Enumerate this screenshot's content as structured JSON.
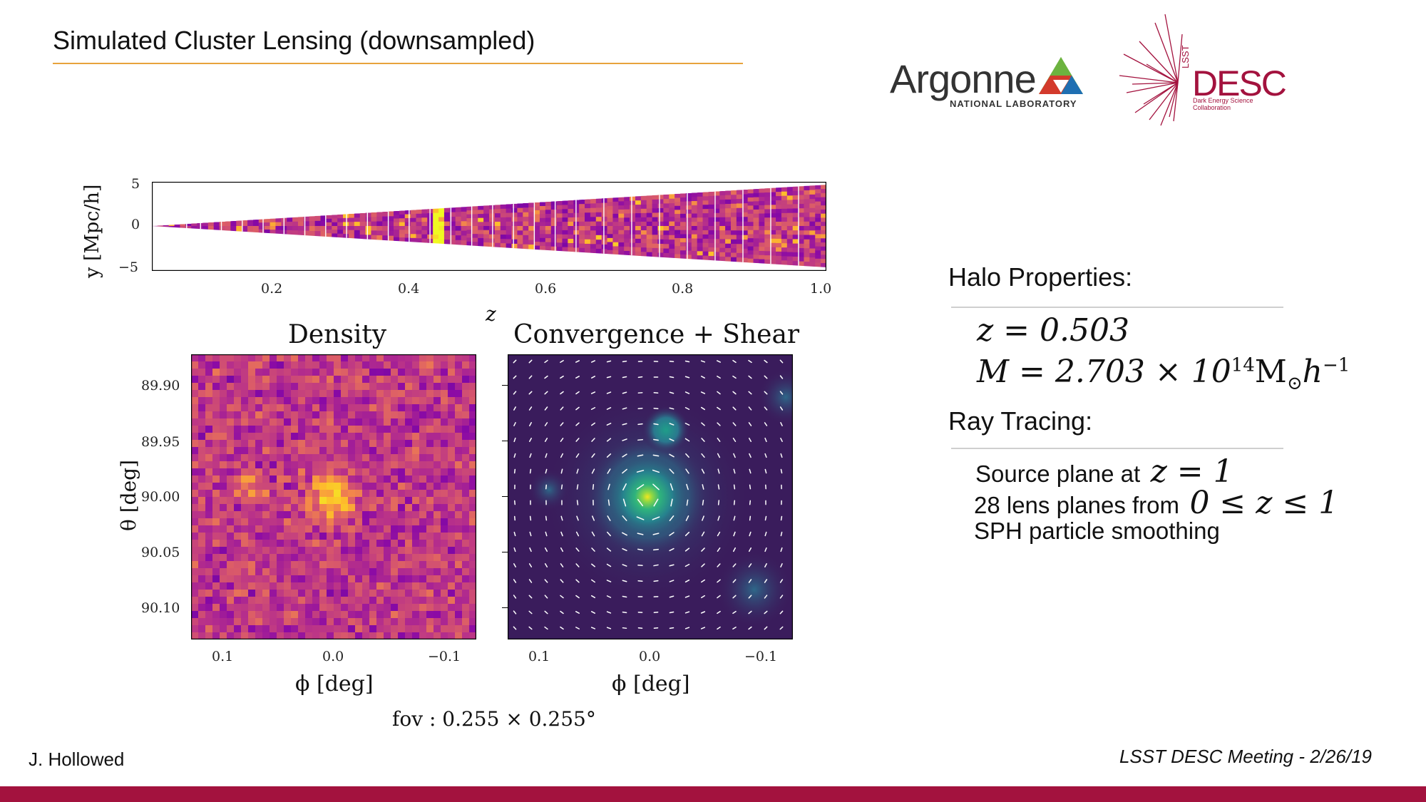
{
  "slide": {
    "title": "Simulated Cluster Lensing (downsampled)",
    "author": "J. Hollowed",
    "event": "LSST DESC Meeting - 2/26/19"
  },
  "logos": {
    "argonne_name": "Argonne",
    "argonne_sub": "NATIONAL LABORATORY",
    "desc_lsst": "LSST",
    "desc_name": "DESC",
    "desc_sub": "Dark Energy Science Collaboration"
  },
  "right_panel": {
    "halo_heading": "Halo Properties:",
    "halo_z": "z = 0.503",
    "halo_mass": "M = 2.703 × 10",
    "halo_mass_exp": "14",
    "halo_mass_unit": "M",
    "halo_mass_sub": "⊙",
    "halo_mass_h": "h",
    "halo_mass_hexp": "−1",
    "ray_heading": "Ray Tracing:",
    "line1_text": "Source plane at",
    "line1_math": "z = 1",
    "line2_text": "28 lens planes from",
    "line2_math": "0 ≤ z ≤ 1",
    "line3_text": "SPH particle smoothing"
  },
  "figure": {
    "lightcone": {
      "ylabel": "y [Mpc/h]",
      "xlabel": "z",
      "yticks": [
        "5",
        "0",
        "−5"
      ],
      "xticks": [
        "0.2",
        "0.4",
        "0.6",
        "0.8",
        "1.0"
      ]
    },
    "density": {
      "title": "Density",
      "ylabel": "θ [deg]",
      "xlabel": "ϕ [deg]",
      "yticks": [
        "89.90",
        "89.95",
        "90.00",
        "90.05",
        "90.10"
      ],
      "xticks": [
        "0.1",
        "0.0",
        "−0.1"
      ]
    },
    "convergence": {
      "title": "Convergence + Shear",
      "xlabel": "ϕ [deg]",
      "xticks": [
        "0.1",
        "0.0",
        "−0.1"
      ]
    },
    "fov_caption": "fov : 0.255 × 0.255°"
  },
  "chart_data": [
    {
      "type": "heatmap",
      "name_ref": "lightcone",
      "xlabel": "z",
      "ylabel": "y [Mpc/h]",
      "xlim": [
        0.03,
        1.0
      ],
      "ylim": [
        -5.3,
        5.3
      ],
      "n_lens_planes": 28,
      "halo_z": 0.503
    },
    {
      "type": "heatmap",
      "title": "Density",
      "xlabel": "ϕ [deg]",
      "ylabel": "θ [deg]",
      "xlim": [
        0.1275,
        -0.1275
      ],
      "ylim": [
        90.1275,
        89.8725
      ],
      "peak": {
        "phi": 0.0,
        "theta": 90.0
      }
    },
    {
      "type": "heatmap",
      "title": "Convergence + Shear",
      "xlabel": "ϕ [deg]",
      "xlim": [
        0.1275,
        -0.1275
      ],
      "ylim": [
        90.1275,
        89.8725
      ],
      "peak": {
        "phi": 0.0,
        "theta": 90.0
      }
    }
  ],
  "colors": {
    "accent_rule": "#e8a33c",
    "footer_bar": "#a3123e",
    "desc_red": "#a3123e"
  }
}
